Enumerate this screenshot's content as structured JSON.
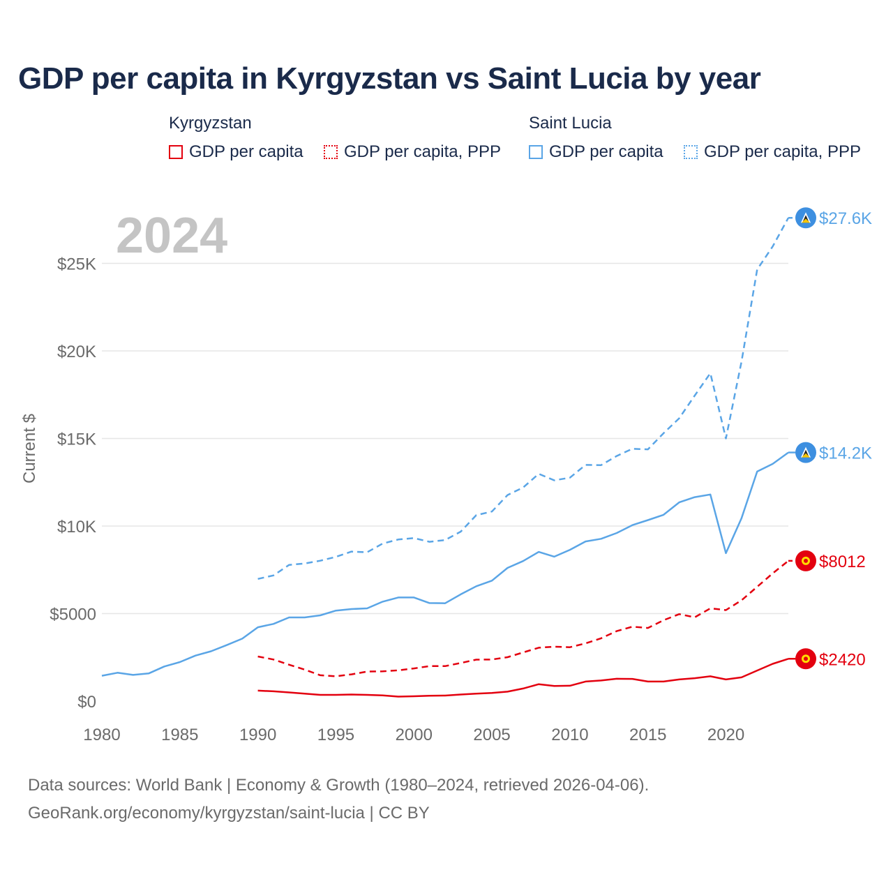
{
  "chart_data": {
    "type": "line",
    "title": "GDP per capita in Kyrgyzstan vs Saint Lucia by year",
    "ylabel": "Current $",
    "xlabel": "",
    "year_watermark": "2024",
    "ylim": [
      0,
      28000
    ],
    "xlim": [
      1980,
      2024
    ],
    "y_ticks": [
      0,
      5000,
      10000,
      15000,
      20000,
      25000
    ],
    "y_tick_labels": [
      "$0",
      "$5000",
      "$10K",
      "$15K",
      "$20K",
      "$25K"
    ],
    "x_ticks": [
      1980,
      1985,
      1990,
      1995,
      2000,
      2005,
      2010,
      2015,
      2020
    ],
    "x_tick_labels": [
      "1980",
      "1985",
      "1990",
      "1995",
      "2000",
      "2005",
      "2010",
      "2015",
      "2020"
    ],
    "grid": true,
    "legend": {
      "groups": [
        {
          "name": "Kyrgyzstan",
          "items": [
            "GDP per capita",
            "GDP per capita, PPP"
          ]
        },
        {
          "name": "Saint Lucia",
          "items": [
            "GDP per capita",
            "GDP per capita, PPP"
          ]
        }
      ]
    },
    "series": [
      {
        "name": "Kyrgyzstan GDP per capita",
        "color": "#e3000f",
        "dash": "solid",
        "end_label": "$2420",
        "x": [
          1990,
          1991,
          1992,
          1993,
          1994,
          1995,
          1996,
          1997,
          1998,
          1999,
          2000,
          2001,
          2002,
          2003,
          2004,
          2005,
          2006,
          2007,
          2008,
          2009,
          2010,
          2011,
          2012,
          2013,
          2014,
          2015,
          2016,
          2017,
          2018,
          2019,
          2020,
          2021,
          2022,
          2023,
          2024
        ],
        "values": [
          600,
          560,
          500,
          430,
          360,
          360,
          380,
          360,
          330,
          260,
          280,
          310,
          320,
          380,
          430,
          470,
          540,
          720,
          970,
          870,
          880,
          1120,
          1180,
          1280,
          1270,
          1120,
          1120,
          1240,
          1310,
          1420,
          1240,
          1360,
          1750,
          2130,
          2420
        ]
      },
      {
        "name": "Kyrgyzstan GDP per capita, PPP",
        "color": "#e3000f",
        "dash": "dashed",
        "end_label": "$8012",
        "x": [
          1990,
          1991,
          1992,
          1993,
          1994,
          1995,
          1996,
          1997,
          1998,
          1999,
          2000,
          2001,
          2002,
          2003,
          2004,
          2005,
          2006,
          2007,
          2008,
          2009,
          2010,
          2011,
          2012,
          2013,
          2014,
          2015,
          2016,
          2017,
          2018,
          2019,
          2020,
          2021,
          2022,
          2023,
          2024
        ],
        "values": [
          2550,
          2380,
          2080,
          1800,
          1480,
          1420,
          1530,
          1690,
          1700,
          1760,
          1870,
          2000,
          2000,
          2180,
          2370,
          2380,
          2510,
          2780,
          3050,
          3110,
          3080,
          3300,
          3590,
          4000,
          4250,
          4180,
          4620,
          4970,
          4790,
          5300,
          5200,
          5760,
          6530,
          7300,
          8012
        ]
      },
      {
        "name": "Saint Lucia GDP per capita",
        "color": "#5aa5e6",
        "dash": "solid",
        "end_label": "$14.2K",
        "x": [
          1980,
          1981,
          1982,
          1983,
          1984,
          1985,
          1986,
          1987,
          1988,
          1989,
          1990,
          1991,
          1992,
          1993,
          1994,
          1995,
          1996,
          1997,
          1998,
          1999,
          2000,
          2001,
          2002,
          2003,
          2004,
          2005,
          2006,
          2007,
          2008,
          2009,
          2010,
          2011,
          2012,
          2013,
          2014,
          2015,
          2016,
          2017,
          2018,
          2019,
          2020,
          2021,
          2022,
          2023,
          2024
        ],
        "values": [
          1450,
          1620,
          1500,
          1580,
          1980,
          2230,
          2600,
          2850,
          3200,
          3570,
          4220,
          4410,
          4780,
          4780,
          4900,
          5170,
          5260,
          5300,
          5680,
          5920,
          5920,
          5600,
          5590,
          6100,
          6560,
          6880,
          7610,
          8000,
          8520,
          8250,
          8640,
          9120,
          9270,
          9600,
          10050,
          10340,
          10640,
          11350,
          11650,
          11800,
          8450,
          10450,
          13110,
          13550,
          14200
        ]
      },
      {
        "name": "Saint Lucia GDP per capita, PPP",
        "color": "#5aa5e6",
        "dash": "dashed",
        "end_label": "$27.6K",
        "x": [
          1990,
          1991,
          1992,
          1993,
          1994,
          1995,
          1996,
          1997,
          1998,
          1999,
          2000,
          2001,
          2002,
          2003,
          2004,
          2005,
          2006,
          2007,
          2008,
          2009,
          2010,
          2011,
          2012,
          2013,
          2014,
          2015,
          2016,
          2017,
          2018,
          2019,
          2020,
          2021,
          2022,
          2023,
          2024
        ],
        "values": [
          6980,
          7180,
          7780,
          7860,
          8020,
          8240,
          8540,
          8500,
          9000,
          9230,
          9310,
          9100,
          9200,
          9680,
          10620,
          10830,
          11770,
          12200,
          12980,
          12610,
          12760,
          13490,
          13480,
          14000,
          14410,
          14380,
          15300,
          16150,
          17450,
          18730,
          15000,
          19400,
          24650,
          25970,
          27600
        ]
      }
    ]
  },
  "footer": {
    "line1": "Data sources: World Bank | Economy & Growth (1980–2024, retrieved 2026-04-06).",
    "line2": "GeoRank.org/economy/kyrgyzstan/saint-lucia | CC BY"
  },
  "colors": {
    "kyrgyzstan": "#e3000f",
    "saint_lucia": "#5aa5e6",
    "grid": "#e6e6e6",
    "axis_text": "#6a6a6a",
    "title": "#1a2a4a",
    "watermark": "#c4c4c4"
  }
}
